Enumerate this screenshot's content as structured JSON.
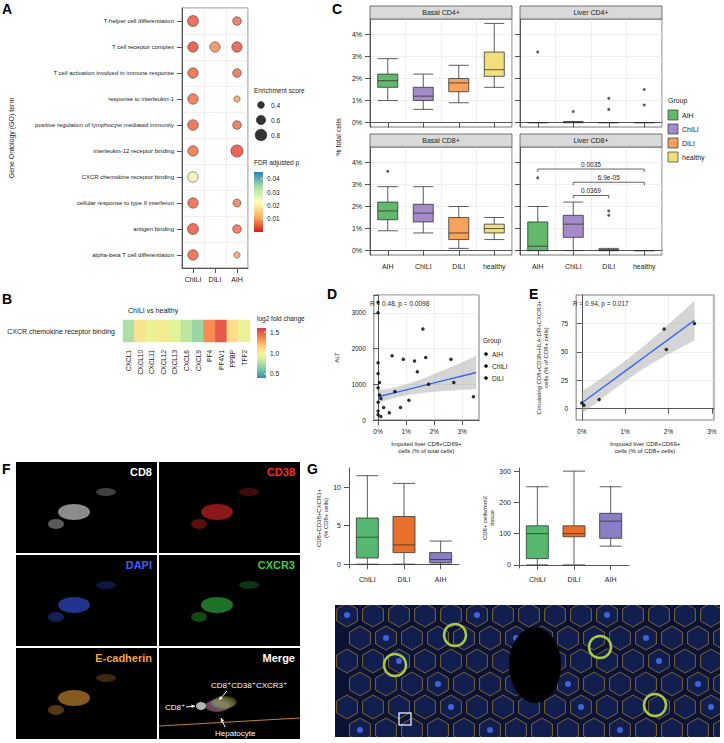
{
  "chart_data": [
    {
      "label": "A",
      "type": "dot",
      "y_title": "Gene Ontology (GO) term",
      "grid": true,
      "categories": [
        "T-helper cell differentiation",
        "T cell receptor complex",
        "T cell activation involved in immune response",
        "response to interleukin-1",
        "positive regulation of lymphocyte mediated immunity",
        "interleukin-12 receptor binding",
        "CXCR chemokine receptor binding",
        "cellular response to type II interferon",
        "antigen binding",
        "alpha-beta T cell differentiation"
      ],
      "x": [
        "ChILI",
        "DILI",
        "AIH"
      ],
      "points": [
        {
          "x": "ChILI",
          "y": "T-helper cell differentiation",
          "enrichment": 0.75,
          "fdr": 0.004
        },
        {
          "x": "ChILI",
          "y": "T cell receptor complex",
          "enrichment": 0.7,
          "fdr": 0.003
        },
        {
          "x": "ChILI",
          "y": "T cell activation involved in immune response",
          "enrichment": 0.7,
          "fdr": 0.005
        },
        {
          "x": "ChILI",
          "y": "response to interleukin-1",
          "enrichment": 0.7,
          "fdr": 0.006
        },
        {
          "x": "ChILI",
          "y": "positive regulation of lymphocyte mediated immunity",
          "enrichment": 0.72,
          "fdr": 0.005
        },
        {
          "x": "ChILI",
          "y": "interleukin-12 receptor binding",
          "enrichment": 0.7,
          "fdr": 0.006
        },
        {
          "x": "ChILI",
          "y": "CXCR chemokine receptor binding",
          "enrichment": 0.7,
          "fdr": 0.02
        },
        {
          "x": "ChILI",
          "y": "cellular response to type II interferon",
          "enrichment": 0.7,
          "fdr": 0.005
        },
        {
          "x": "ChILI",
          "y": "antigen binding",
          "enrichment": 0.75,
          "fdr": 0.004
        },
        {
          "x": "ChILI",
          "y": "alpha-beta T cell differentiation",
          "enrichment": 0.7,
          "fdr": 0.005
        },
        {
          "x": "DILI",
          "y": "T cell receptor complex",
          "enrichment": 0.7,
          "fdr": 0.008
        },
        {
          "x": "AIH",
          "y": "T-helper cell differentiation",
          "enrichment": 0.55,
          "fdr": 0.006
        },
        {
          "x": "AIH",
          "y": "T cell receptor complex",
          "enrichment": 0.7,
          "fdr": 0.004
        },
        {
          "x": "AIH",
          "y": "T cell activation involved in immune response",
          "enrichment": 0.55,
          "fdr": 0.006
        },
        {
          "x": "AIH",
          "y": "response to interleukin-1",
          "enrichment": 0.35,
          "fdr": 0.01
        },
        {
          "x": "AIH",
          "y": "positive regulation of lymphocyte mediated immunity",
          "enrichment": 0.55,
          "fdr": 0.006
        },
        {
          "x": "AIH",
          "y": "interleukin-12 receptor binding",
          "enrichment": 0.85,
          "fdr": 0.003
        },
        {
          "x": "AIH",
          "y": "cellular response to type II interferon",
          "enrichment": 0.5,
          "fdr": 0.007
        },
        {
          "x": "AIH",
          "y": "antigen binding",
          "enrichment": 0.55,
          "fdr": 0.006
        },
        {
          "x": "AIH",
          "y": "alpha-beta T cell differentiation",
          "enrichment": 0.35,
          "fdr": 0.01
        }
      ],
      "size_legend": {
        "title": "Enrichment score",
        "values": [
          0.4,
          0.6,
          0.8
        ]
      },
      "colorbar": {
        "title": "FDR adjusted p",
        "range": [
          0,
          0.045
        ],
        "ticks": [
          0.01,
          0.02,
          0.03,
          0.04
        ]
      }
    },
    {
      "label": "B",
      "type": "heatmap",
      "title": "ChILI vs healthy",
      "rows": [
        "CXCR chemokine receptor binding"
      ],
      "columns": [
        "CXCL1",
        "CXCL10",
        "CXCL11",
        "CXCL12",
        "CXCL13",
        "CXCL6",
        "CXCL9",
        "PF4",
        "PF4V1",
        "PPBP",
        "TFF2"
      ],
      "values": [
        [
          0.75,
          1.05,
          0.95,
          1.0,
          0.9,
          0.8,
          0.7,
          1.35,
          1.5,
          1.1,
          0.95
        ]
      ],
      "colorbar": {
        "title": "log2 fold change",
        "range": [
          0.4,
          1.6
        ],
        "ticks": [
          0.5,
          {
            "value": 1,
            "label": "1.0"
          },
          1.5
        ]
      }
    },
    {
      "label": "C",
      "type": "boxplot",
      "ylabel": "% total cells",
      "grid": true,
      "legend": "right",
      "legend_title": "Group",
      "categories": [
        "AIH",
        "ChILI",
        "DILI",
        "healthy"
      ],
      "series": [
        {
          "name": "AIH",
          "color": "#62b86c"
        },
        {
          "name": "ChILI",
          "color": "#a48bc9"
        },
        {
          "name": "DILI",
          "color": "#f5a25c"
        },
        {
          "name": "healthy",
          "color": "#f1e07a"
        }
      ],
      "ylim": [
        -0.2,
        4.7
      ],
      "yticks": [
        {
          "value": 0,
          "label": "0%"
        },
        {
          "value": 1,
          "label": "1%"
        },
        {
          "value": 2,
          "label": "2%"
        },
        {
          "value": 3,
          "label": "3%"
        },
        {
          "value": 4,
          "label": "4%"
        }
      ],
      "facets": [
        {
          "title": "Basal CD4+",
          "boxes": [
            [
              1.0,
              1.6,
              1.9,
              2.2,
              2.9
            ],
            [
              0.6,
              1.0,
              1.2,
              1.6,
              2.2
            ],
            [
              0.9,
              1.4,
              1.8,
              2.0,
              2.6
            ],
            [
              1.6,
              2.1,
              2.4,
              3.2,
              4.5
            ]
          ],
          "outliers": [
            [],
            [],
            [],
            []
          ],
          "comparisons": []
        },
        {
          "title": "Liver CD4+",
          "boxes": [
            [
              0,
              0,
              0,
              0,
              0
            ],
            [
              0,
              0,
              0,
              0.02,
              0.05
            ],
            [
              0,
              0,
              0,
              0,
              0
            ],
            [
              0,
              0,
              0,
              0,
              0
            ]
          ],
          "outliers": [
            [
              3.2
            ],
            [
              0.5
            ],
            [
              0.6,
              1.1
            ],
            [
              0.8,
              1.5
            ]
          ],
          "comparisons": []
        },
        {
          "title": "Basal CD8+",
          "boxes": [
            [
              0.9,
              1.4,
              1.8,
              2.2,
              2.9
            ],
            [
              0.8,
              1.3,
              1.7,
              2.1,
              2.9
            ],
            [
              0.1,
              0.5,
              0.8,
              1.5,
              2.0
            ],
            [
              0.5,
              0.8,
              1.0,
              1.2,
              1.5
            ]
          ],
          "outliers": [
            [
              3.6
            ],
            [],
            [],
            []
          ],
          "comparisons": []
        },
        {
          "title": "Liver CD8+",
          "boxes": [
            [
              0,
              0,
              0.2,
              1.3,
              2.0
            ],
            [
              0,
              0.6,
              1.2,
              1.6,
              2.2
            ],
            [
              0,
              0,
              0,
              0.05,
              0.1
            ],
            [
              0,
              0,
              0,
              0,
              0
            ]
          ],
          "outliers": [
            [
              3.3
            ],
            [],
            [
              1.6,
              1.8
            ],
            []
          ],
          "comparisons": [
            {
              "groups": [
                "AIH",
                "healthy"
              ],
              "y": 3.7,
              "p": "0.0035"
            },
            {
              "groups": [
                "ChILI",
                "healthy"
              ],
              "y": 3.1,
              "p": "6.9e-05"
            },
            {
              "groups": [
                "ChILI",
                "DILI"
              ],
              "y": 2.5,
              "p": "0.0369"
            }
          ]
        }
      ]
    },
    {
      "label": "D",
      "type": "scatter",
      "xlabel": "Imputed liver CD8+CD69+ cells (% of total cells)",
      "ylabel": "ALT",
      "annotation": "R = 0.48, p = 0.0098",
      "grid": true,
      "legend": "right",
      "legend_title": "Group",
      "xlim": [
        -0.15,
        3.6
      ],
      "xticks": [
        {
          "value": 0,
          "label": "0%"
        },
        {
          "value": 1,
          "label": "1%"
        },
        {
          "value": 2,
          "label": "2%"
        },
        {
          "value": 3,
          "label": "3%"
        }
      ],
      "ylim": [
        0,
        3500
      ],
      "yticks": [
        0,
        1000,
        2000,
        3000
      ],
      "series": [
        {
          "name": "AIH",
          "color": "#000000",
          "marker": "circle",
          "x": [
            0,
            0,
            0.05,
            0.1,
            0.2,
            0,
            1.3,
            0.5
          ],
          "values": [
            3300,
            3000,
            1050,
            600,
            350,
            250,
            1650,
            1800
          ]
        },
        {
          "name": "ChILI",
          "color": "#000000",
          "marker": "circle",
          "x": [
            0.4,
            0.6,
            0.9,
            1.1,
            1.4,
            1.6,
            1.7,
            1.8,
            2.6,
            2.7,
            3.4,
            0.8
          ],
          "values": [
            200,
            800,
            1700,
            550,
            1350,
            2550,
            1750,
            1000,
            1700,
            1050,
            650,
            350
          ]
        },
        {
          "name": "DILI",
          "color": "#000000",
          "marker": "circle",
          "x": [
            0,
            0,
            0,
            0,
            0,
            0.05,
            0.1
          ],
          "values": [
            1600,
            1300,
            900,
            500,
            150,
            700,
            100
          ]
        }
      ],
      "fit": {
        "x": [
          0,
          0.5,
          1,
          1.5,
          2,
          2.5,
          3,
          3.5
        ],
        "values": [
          650,
          747,
          844,
          941,
          1039,
          1136,
          1233,
          1330
        ],
        "ci_lower": [
          470,
          600,
          690,
          750,
          790,
          820,
          845,
          860
        ],
        "ci_upper": [
          830,
          895,
          1000,
          1130,
          1290,
          1450,
          1620,
          1800
        ]
      }
    },
    {
      "label": "E",
      "type": "scatter",
      "xlabel": "Imputed liver CD8+CD69+ cells (% of CD8+ cells)",
      "ylabel": "Circulating CD8+CD38+HLA-DR+CXCR3+ cells (% of CD8+ cells)",
      "annotation": "R = 0.94, p = 0.017",
      "grid": true,
      "xlim": [
        -0.13,
        3.05
      ],
      "xticks": [
        {
          "value": 0,
          "label": "0%"
        },
        {
          "value": 1,
          "label": "1%"
        },
        {
          "value": 2,
          "label": "2%"
        },
        {
          "value": 3,
          "label": "3%"
        }
      ],
      "ylim": [
        -10,
        100
      ],
      "yticks": [
        0,
        25,
        50,
        75
      ],
      "series": [
        {
          "color": "#000000",
          "marker": "circle",
          "x": [
            0,
            0.05,
            0.4,
            1.9,
            1.95,
            2.6
          ],
          "values": [
            5,
            3,
            8,
            70,
            52,
            75
          ]
        }
      ],
      "fit": {
        "x": [
          0,
          0.5,
          1,
          1.5,
          2,
          2.6
        ],
        "values": [
          5,
          19,
          33,
          47,
          61,
          77.8
        ],
        "ci_lower": [
          -5,
          10,
          24,
          37,
          48,
          60
        ],
        "ci_upper": [
          15,
          28,
          42,
          57,
          74,
          95
        ]
      }
    },
    {
      "label": "F",
      "type": "image",
      "panels": [
        {
          "channel": "CD8",
          "color": "#ffffff"
        },
        {
          "channel": "CD38",
          "color": "#ff2a2a"
        },
        {
          "channel": "DAPI",
          "color": "#3d5cff"
        },
        {
          "channel": "CXCR3",
          "color": "#33d24a"
        },
        {
          "channel": "E-cadherin",
          "color": "#f2a23a"
        },
        {
          "channel": "Merge",
          "color": "#ffffff"
        }
      ],
      "annotations": [
        "CD8⁺CD38⁺CXCR3⁺",
        "CD8⁺",
        "Hepatocyte"
      ]
    },
    {
      "label": "G",
      "type": "boxplot",
      "grid": false,
      "categories": [
        "ChILI",
        "DILI",
        "AIH"
      ],
      "colors": [
        "#56b870",
        "#e8702a",
        "#8b7fc4"
      ],
      "panels": [
        {
          "ylabel": "CD8+CD38+CXCR3+ (% CD8+ cells)",
          "ylim": [
            -0.5,
            12.5
          ],
          "yticks": [
            0,
            5,
            10
          ],
          "boxes": [
            [
              0,
              0.8,
              3.5,
              6,
              11.5
            ],
            [
              0,
              1.5,
              2.5,
              6.2,
              10.5
            ],
            [
              0,
              0.2,
              0.6,
              1.5,
              3
            ]
          ]
        },
        {
          "ylabel": "CD8+ cells/mm2 tissue",
          "ylim": [
            -10,
            310
          ],
          "yticks": [
            0,
            100,
            200,
            300
          ],
          "boxes": [
            [
              0,
              20,
              100,
              125,
              250
            ],
            [
              0,
              90,
              100,
              125,
              300
            ],
            [
              60,
              85,
              140,
              165,
              250
            ]
          ]
        }
      ]
    }
  ]
}
